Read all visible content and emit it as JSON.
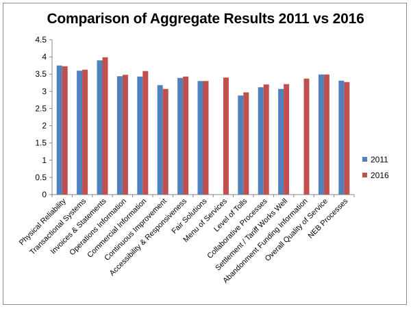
{
  "chart_data": {
    "type": "bar",
    "title": "Comparison of Aggregate Results 2011 vs 2016",
    "xlabel": "",
    "ylabel": "",
    "ylim": [
      0,
      4.5
    ],
    "yticks": [
      0,
      0.5,
      1,
      1.5,
      2,
      2.5,
      3,
      3.5,
      4,
      4.5
    ],
    "ytick_labels": [
      "0",
      "0.5",
      "1",
      "1.5",
      "2",
      "2.5",
      "3",
      "3.5",
      "4",
      "4.5"
    ],
    "grid": "none",
    "legend_position": "right",
    "categories": [
      "Physical Reliability",
      "Transactional Systems",
      "Invoices & Statements",
      "Operations Information",
      "Commercial Information",
      "Continuous Improvement",
      "Accessibility & Responsiveness",
      "Fair Solutions",
      "Menu of Services",
      "Level of Tolls",
      "Collaborative Processes",
      "Settlement / Tariff Works Well",
      "Abandonment Funding Information",
      "Overall Quality of Service",
      "NEB Processes"
    ],
    "series": [
      {
        "name": "2011",
        "color": "#4f81bd",
        "values": [
          3.75,
          3.6,
          3.9,
          3.44,
          3.43,
          3.18,
          3.39,
          3.3,
          null,
          2.88,
          3.12,
          3.07,
          null,
          3.49,
          3.31
        ]
      },
      {
        "name": "2016",
        "color": "#c0504d",
        "values": [
          3.73,
          3.63,
          3.99,
          3.48,
          3.59,
          3.07,
          3.43,
          3.3,
          3.4,
          2.97,
          3.2,
          3.21,
          3.37,
          3.49,
          3.27
        ]
      }
    ]
  }
}
